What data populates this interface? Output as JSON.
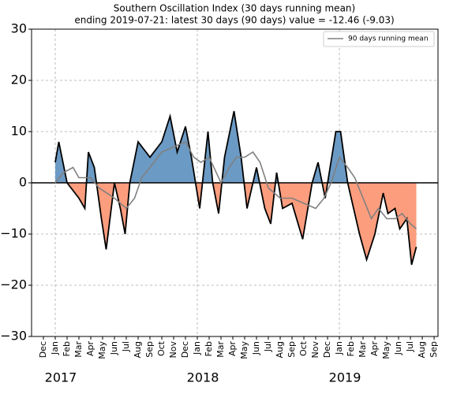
{
  "chart_data": {
    "type": "area-line",
    "title": "Southern Oscillation Index (30 days running mean)",
    "subtitle": "ending 2019-07-21: latest 30 days (90 days) value = -12.46 (-9.03)",
    "xlim": [
      -1,
      33.33
    ],
    "xticks": [
      {
        "value": 0,
        "label": "Dec"
      },
      {
        "value": 1,
        "label": "Jan"
      },
      {
        "value": 2,
        "label": "Feb"
      },
      {
        "value": 3,
        "label": "Mar"
      },
      {
        "value": 4,
        "label": "Apr"
      },
      {
        "value": 5,
        "label": "May"
      },
      {
        "value": 6,
        "label": "Jun"
      },
      {
        "value": 7,
        "label": "Jul"
      },
      {
        "value": 8,
        "label": "Aug"
      },
      {
        "value": 9,
        "label": "Sep"
      },
      {
        "value": 10,
        "label": "Oct"
      },
      {
        "value": 11,
        "label": "Nov"
      },
      {
        "value": 12,
        "label": "Dec"
      },
      {
        "value": 13,
        "label": "Jan"
      },
      {
        "value": 14,
        "label": "Feb"
      },
      {
        "value": 15,
        "label": "Mar"
      },
      {
        "value": 16,
        "label": "Apr"
      },
      {
        "value": 17,
        "label": "May"
      },
      {
        "value": 18,
        "label": "Jun"
      },
      {
        "value": 19,
        "label": "Jul"
      },
      {
        "value": 20,
        "label": "Aug"
      },
      {
        "value": 21,
        "label": "Sep"
      },
      {
        "value": 22,
        "label": "Oct"
      },
      {
        "value": 23,
        "label": "Nov"
      },
      {
        "value": 24,
        "label": "Dec"
      },
      {
        "value": 25,
        "label": "Jan"
      },
      {
        "value": 26,
        "label": "Feb"
      },
      {
        "value": 27,
        "label": "Mar"
      },
      {
        "value": 28,
        "label": "Apr"
      },
      {
        "value": 29,
        "label": "May"
      },
      {
        "value": 30,
        "label": "Jun"
      },
      {
        "value": 31,
        "label": "Jul"
      },
      {
        "value": 32,
        "label": "Aug"
      },
      {
        "value": 33,
        "label": "Sep"
      }
    ],
    "year_labels": [
      {
        "value": 1,
        "label": "2017"
      },
      {
        "value": 13,
        "label": "2018"
      },
      {
        "value": 25,
        "label": "2019"
      }
    ],
    "ylim": [
      -30,
      30
    ],
    "yticks": [
      {
        "value": -30,
        "label": "−30"
      },
      {
        "value": -20,
        "label": "−20"
      },
      {
        "value": -10,
        "label": "−10"
      },
      0,
      10,
      20,
      30
    ],
    "grid": true,
    "legend": "upper right",
    "fill_colors": {
      "positive": "#6b9ac4",
      "negative": "#fc9d7e"
    },
    "series": [
      {
        "color": "#000000",
        "x": [
          1,
          1.3,
          2,
          3,
          3.5,
          3.8,
          4.3,
          4.9,
          5.3,
          6,
          6.5,
          6.9,
          7.3,
          8,
          9,
          10,
          10.7,
          11.3,
          12,
          12.5,
          13.2,
          13.9,
          14.3,
          14.8,
          15.3,
          16.1,
          16.7,
          17.2,
          18,
          18.7,
          19.2,
          19.7,
          20.2,
          21,
          21.9,
          22.7,
          23.2,
          23.8,
          24.7,
          25.1,
          25.7,
          26.7,
          27.3,
          28,
          28.7,
          29.1,
          29.7,
          30.1,
          30.7,
          31.1,
          31.5
        ],
        "values": [
          4,
          8,
          0,
          -3,
          -5,
          6,
          3,
          -7,
          -13,
          0,
          -5,
          -10,
          0,
          8,
          5,
          8,
          13,
          6,
          11,
          5,
          -5,
          10,
          0,
          -6,
          5,
          14,
          5,
          -5,
          3,
          -5,
          -8,
          2,
          -5,
          -4,
          -11,
          0,
          4,
          -3,
          10,
          10,
          0,
          -10,
          -15,
          -10,
          -2,
          -6,
          -5,
          -9,
          -7,
          -16,
          -12.5
        ]
      },
      {
        "name": "90 days running mean",
        "color": "#808080",
        "x": [
          1,
          1.7,
          2.5,
          3,
          4,
          4.7,
          6,
          7,
          7.7,
          8.3,
          9,
          10,
          11,
          12,
          12.7,
          13.3,
          14,
          15,
          15.7,
          16.3,
          17,
          17.7,
          18.3,
          19,
          20,
          21,
          22,
          23,
          23.7,
          24.3,
          25,
          25.7,
          26.3,
          27,
          27.7,
          28.3,
          29,
          29.7,
          30.3,
          31,
          31.5
        ],
        "values": [
          0,
          2,
          3,
          1,
          1,
          -1,
          -3,
          -5,
          -3,
          1,
          3,
          6,
          7,
          8,
          5,
          4,
          5,
          0,
          3,
          5,
          5,
          6,
          4,
          -1,
          -3,
          -3,
          -4,
          -5,
          -3,
          0,
          5,
          3,
          1,
          -3,
          -7,
          -5,
          -7,
          -7,
          -6,
          -8,
          -9
        ]
      }
    ]
  }
}
